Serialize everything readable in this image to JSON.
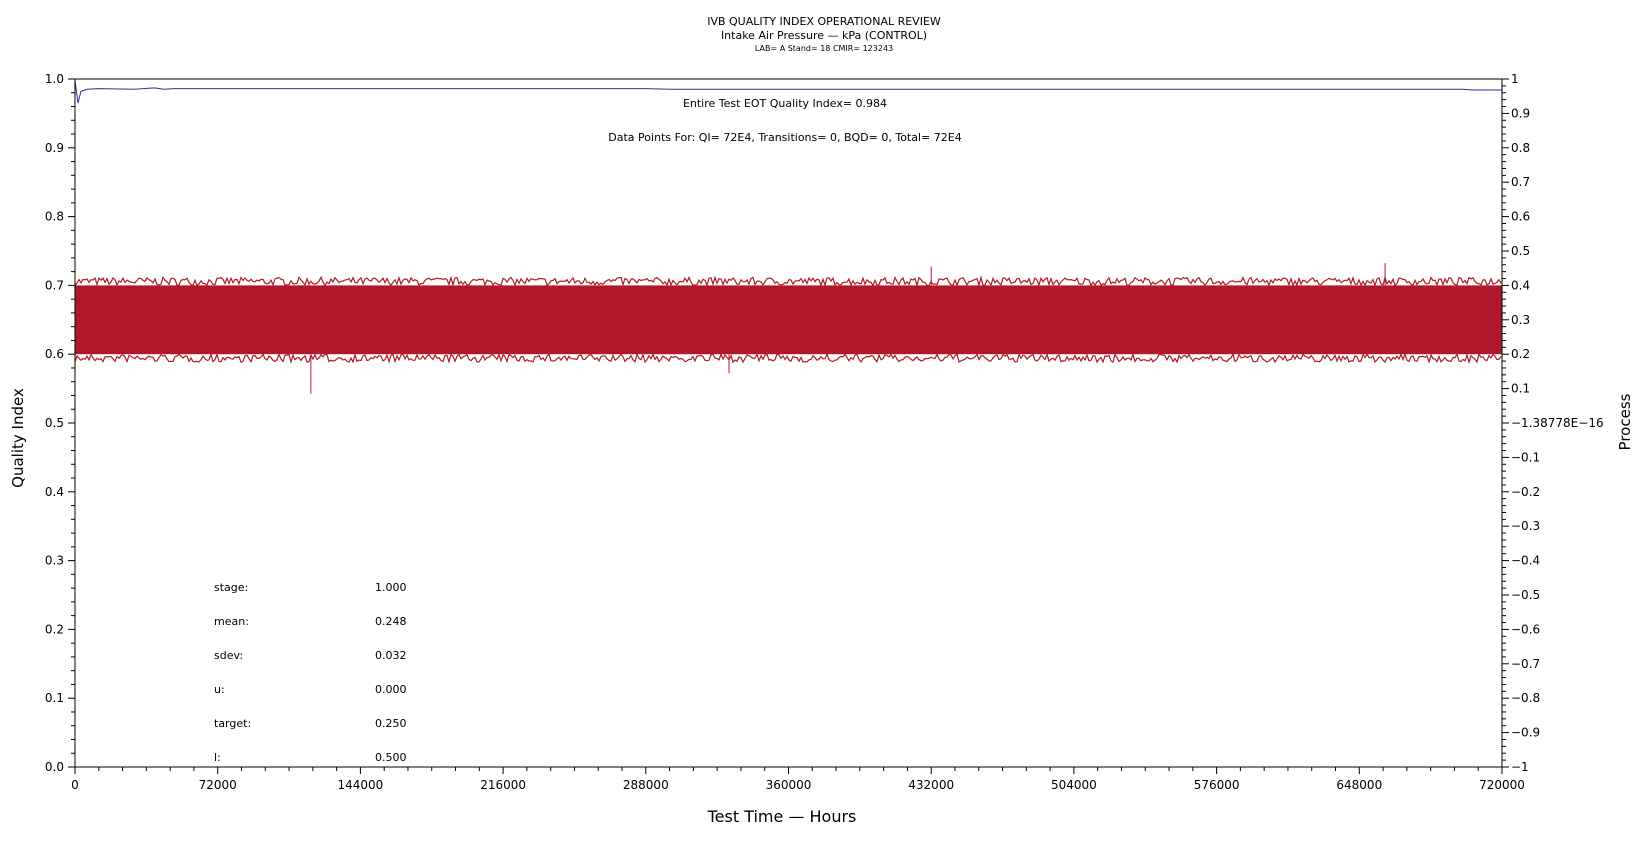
{
  "chart_data": {
    "type": "line",
    "title": "IVB QUALITY INDEX OPERATIONAL REVIEW",
    "subtitle": "Intake Air Pressure — kPa (CONTROL)",
    "subtitle2": "LAB= A Stand= 18 CMIR= 123243",
    "xlabel": "Test Time — Hours",
    "ylabel": "Quality Index",
    "y2label": "Process",
    "xlim": [
      0,
      720000
    ],
    "ylim": [
      0.0,
      1.0
    ],
    "y2lim": [
      -1,
      1
    ],
    "x_ticks": [
      "0",
      "72000",
      "144000",
      "216000",
      "288000",
      "360000",
      "432000",
      "504000",
      "576000",
      "648000",
      "720000"
    ],
    "y_ticks": [
      "0.0",
      "0.1",
      "0.2",
      "0.3",
      "0.4",
      "0.5",
      "0.6",
      "0.7",
      "0.8",
      "0.9",
      "1.0"
    ],
    "y2_ticks": [
      "−1",
      "−0.9",
      "−0.8",
      "−0.7",
      "−0.6",
      "−0.5",
      "−0.4",
      "−0.3",
      "−0.2",
      "−0.1",
      "−1.38778E−16",
      "0.1",
      "0.2",
      "0.3",
      "0.4",
      "0.5",
      "0.6",
      "0.7",
      "0.8",
      "0.9",
      "1"
    ],
    "grid": false,
    "annotations": {
      "eot": "Entire Test EOT Quality Index=   0.984",
      "data_points": "Data Points For: QI=  72E4, Transitions=     0, BQD=     0, Total=  72E4"
    },
    "stats": [
      {
        "label": "stage:",
        "value": "1.000"
      },
      {
        "label": "mean:",
        "value": "0.248"
      },
      {
        "label": "sdev:",
        "value": "0.032"
      },
      {
        "label": "u:",
        "value": "0.000"
      },
      {
        "label": "target:",
        "value": "0.250"
      },
      {
        "label": "l:",
        "value": "0.500"
      }
    ],
    "series": [
      {
        "axis": "left",
        "color": "#2b2f9e",
        "x": [
          0,
          1500,
          3000,
          6000,
          12000,
          30000,
          40000,
          45000,
          50000,
          100000,
          200000,
          288000,
          300000,
          400000,
          500000,
          600000,
          700000,
          705000,
          720000
        ],
        "y": [
          0.998,
          0.965,
          0.982,
          0.985,
          0.986,
          0.985,
          0.987,
          0.985,
          0.986,
          0.986,
          0.986,
          0.986,
          0.985,
          0.985,
          0.985,
          0.985,
          0.985,
          0.984,
          0.984
        ]
      },
      {
        "axis": "right",
        "color": "#b0182a",
        "band_center": 0.3,
        "band_half_width": 0.1,
        "x": [
          0,
          72000,
          119000,
          144000,
          216000,
          288000,
          330000,
          360000,
          432000,
          504000,
          576000,
          648000,
          660000,
          720000
        ],
        "y": [
          0.3,
          0.3,
          0.3,
          0.3,
          0.3,
          0.3,
          0.3,
          0.3,
          0.3,
          0.3,
          0.3,
          0.3,
          0.3,
          0.3
        ],
        "spikes": [
          {
            "x": 119000,
            "y": 0.085
          },
          {
            "x": 330000,
            "y": 0.145
          },
          {
            "x": 432000,
            "y": 0.455
          },
          {
            "x": 661000,
            "y": 0.465
          }
        ]
      }
    ],
    "colors": {
      "line": "#2b2f9e",
      "band": "#b0182a"
    }
  }
}
